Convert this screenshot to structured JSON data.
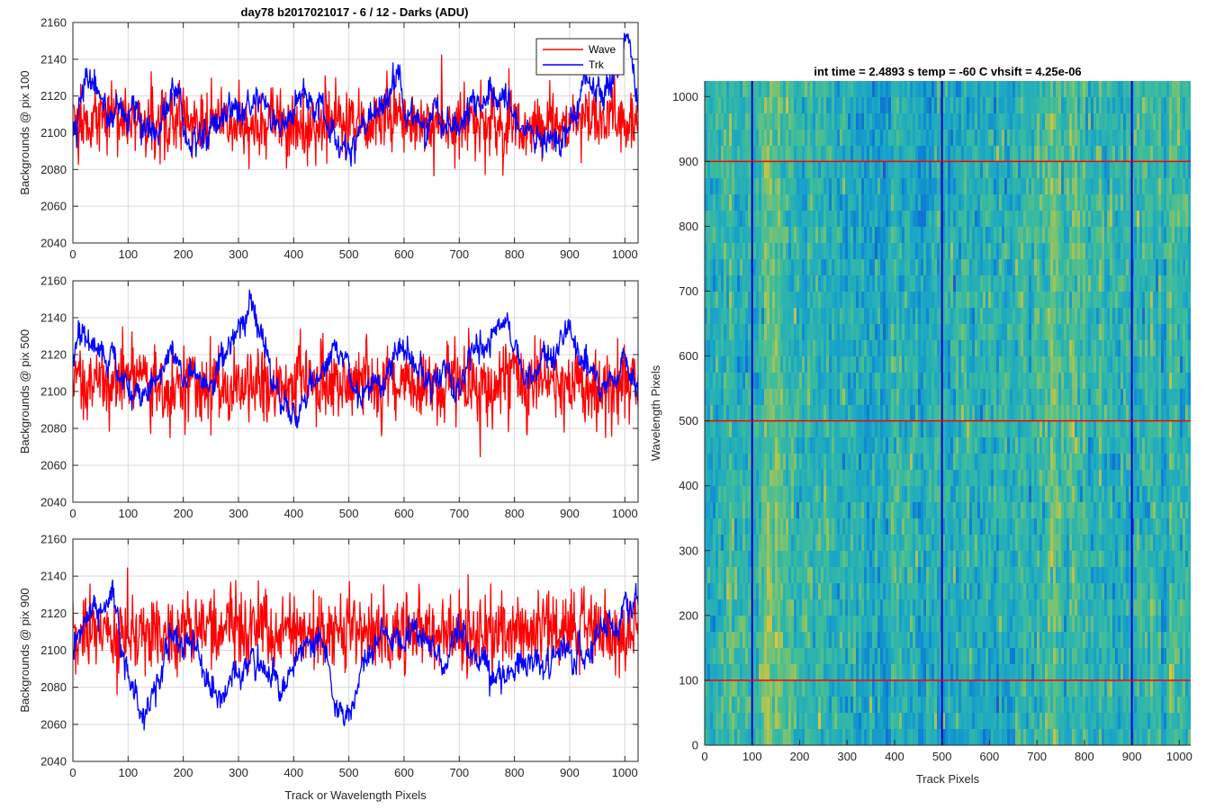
{
  "figure": {
    "title": "day78 b2017021017 - 6 / 12 - Darks (ADU)"
  },
  "chart_data": [
    {
      "type": "line",
      "ylabel": "Backgrounds @ pix 100",
      "xlabel": "",
      "xlim": [
        0,
        1024
      ],
      "ylim": [
        2040,
        2160
      ],
      "xticks": [
        0,
        100,
        200,
        300,
        400,
        500,
        600,
        700,
        800,
        900,
        1000
      ],
      "yticks": [
        2040,
        2060,
        2080,
        2100,
        2120,
        2140,
        2160
      ],
      "grid": true,
      "legend": {
        "placement": "top-right",
        "entries": [
          "Wave",
          "Trk"
        ]
      },
      "series": [
        {
          "name": "Wave",
          "color": "#ff0000",
          "mean": 2106,
          "noise": 9,
          "wander": 2,
          "anchors": [
            [
              0,
              2106
            ],
            [
              1024,
              2106
            ]
          ]
        },
        {
          "name": "Trk",
          "color": "#0000ff",
          "mean": 2110,
          "noise": 3,
          "wander": 6,
          "anchors": [
            [
              0,
              2102
            ],
            [
              20,
              2120
            ],
            [
              40,
              2130
            ],
            [
              60,
              2112
            ],
            [
              90,
              2102
            ],
            [
              120,
              2108
            ],
            [
              150,
              2098
            ],
            [
              180,
              2120
            ],
            [
              200,
              2108
            ],
            [
              220,
              2095
            ],
            [
              250,
              2110
            ],
            [
              280,
              2118
            ],
            [
              310,
              2125
            ],
            [
              340,
              2112
            ],
            [
              370,
              2100
            ],
            [
              400,
              2108
            ],
            [
              430,
              2118
            ],
            [
              460,
              2110
            ],
            [
              490,
              2098
            ],
            [
              520,
              2105
            ],
            [
              550,
              2112
            ],
            [
              580,
              2120
            ],
            [
              610,
              2115
            ],
            [
              640,
              2100
            ],
            [
              670,
              2105
            ],
            [
              700,
              2108
            ],
            [
              730,
              2112
            ],
            [
              760,
              2118
            ],
            [
              790,
              2113
            ],
            [
              820,
              2108
            ],
            [
              850,
              2098
            ],
            [
              880,
              2095
            ],
            [
              910,
              2110
            ],
            [
              940,
              2118
            ],
            [
              970,
              2122
            ],
            [
              990,
              2135
            ],
            [
              1000,
              2148
            ],
            [
              1010,
              2140
            ],
            [
              1024,
              2115
            ]
          ]
        }
      ]
    },
    {
      "type": "line",
      "ylabel": "Backgrounds @ pix 500",
      "xlabel": "",
      "xlim": [
        0,
        1024
      ],
      "ylim": [
        2040,
        2160
      ],
      "xticks": [
        0,
        100,
        200,
        300,
        400,
        500,
        600,
        700,
        800,
        900,
        1000
      ],
      "yticks": [
        2040,
        2060,
        2080,
        2100,
        2120,
        2140,
        2160
      ],
      "grid": true,
      "series": [
        {
          "name": "Wave",
          "color": "#ff0000",
          "mean": 2104,
          "noise": 10,
          "wander": 2,
          "anchors": [
            [
              0,
              2104
            ],
            [
              1024,
              2104
            ]
          ]
        },
        {
          "name": "Trk",
          "color": "#0000ff",
          "mean": 2110,
          "noise": 3,
          "wander": 5,
          "anchors": [
            [
              0,
              2115
            ],
            [
              20,
              2128
            ],
            [
              40,
              2138
            ],
            [
              60,
              2120
            ],
            [
              90,
              2105
            ],
            [
              120,
              2095
            ],
            [
              150,
              2105
            ],
            [
              180,
              2115
            ],
            [
              210,
              2110
            ],
            [
              240,
              2100
            ],
            [
              270,
              2115
            ],
            [
              300,
              2130
            ],
            [
              320,
              2142
            ],
            [
              340,
              2125
            ],
            [
              370,
              2100
            ],
            [
              400,
              2082
            ],
            [
              420,
              2095
            ],
            [
              450,
              2115
            ],
            [
              470,
              2130
            ],
            [
              500,
              2120
            ],
            [
              520,
              2102
            ],
            [
              550,
              2100
            ],
            [
              580,
              2120
            ],
            [
              610,
              2115
            ],
            [
              640,
              2095
            ],
            [
              670,
              2108
            ],
            [
              700,
              2105
            ],
            [
              730,
              2115
            ],
            [
              760,
              2132
            ],
            [
              780,
              2140
            ],
            [
              800,
              2118
            ],
            [
              830,
              2108
            ],
            [
              860,
              2110
            ],
            [
              880,
              2125
            ],
            [
              900,
              2138
            ],
            [
              920,
              2125
            ],
            [
              950,
              2110
            ],
            [
              980,
              2100
            ],
            [
              1000,
              2118
            ],
            [
              1024,
              2085
            ]
          ]
        }
      ]
    },
    {
      "type": "line",
      "ylabel": "Backgrounds @ pix 900",
      "xlabel": "Track or Wavelength Pixels",
      "xlim": [
        0,
        1024
      ],
      "ylim": [
        2040,
        2160
      ],
      "xticks": [
        0,
        100,
        200,
        300,
        400,
        500,
        600,
        700,
        800,
        900,
        1000
      ],
      "yticks": [
        2040,
        2060,
        2080,
        2100,
        2120,
        2140,
        2160
      ],
      "grid": true,
      "series": [
        {
          "name": "Wave",
          "color": "#ff0000",
          "mean": 2110,
          "noise": 10,
          "wander": 2,
          "anchors": [
            [
              0,
              2110
            ],
            [
              1024,
              2110
            ]
          ]
        },
        {
          "name": "Trk",
          "color": "#0000ff",
          "mean": 2100,
          "noise": 3,
          "wander": 5,
          "anchors": [
            [
              0,
              2100
            ],
            [
              20,
              2112
            ],
            [
              50,
              2125
            ],
            [
              80,
              2115
            ],
            [
              100,
              2095
            ],
            [
              120,
              2072
            ],
            [
              140,
              2068
            ],
            [
              170,
              2098
            ],
            [
              200,
              2112
            ],
            [
              230,
              2090
            ],
            [
              260,
              2075
            ],
            [
              290,
              2082
            ],
            [
              320,
              2100
            ],
            [
              350,
              2090
            ],
            [
              380,
              2075
            ],
            [
              400,
              2090
            ],
            [
              420,
              2105
            ],
            [
              450,
              2100
            ],
            [
              480,
              2065
            ],
            [
              500,
              2072
            ],
            [
              520,
              2090
            ],
            [
              550,
              2105
            ],
            [
              580,
              2100
            ],
            [
              610,
              2112
            ],
            [
              640,
              2103
            ],
            [
              670,
              2095
            ],
            [
              700,
              2108
            ],
            [
              730,
              2102
            ],
            [
              760,
              2095
            ],
            [
              790,
              2085
            ],
            [
              820,
              2094
            ],
            [
              850,
              2090
            ],
            [
              880,
              2100
            ],
            [
              910,
              2095
            ],
            [
              940,
              2108
            ],
            [
              970,
              2115
            ],
            [
              1000,
              2125
            ],
            [
              1024,
              2115
            ]
          ]
        }
      ]
    },
    {
      "type": "heatmap",
      "title": "int time = 2.4893 s    temp = -60 C    vhsift = 4.25e-06",
      "xlabel": "Track Pixels",
      "ylabel": "Wavelength Pixels",
      "xlim": [
        0,
        1024
      ],
      "ylim": [
        0,
        1024
      ],
      "xticks": [
        0,
        100,
        200,
        300,
        400,
        500,
        600,
        700,
        800,
        900,
        1000
      ],
      "yticks": [
        0,
        100,
        200,
        300,
        400,
        500,
        600,
        700,
        800,
        900,
        1000
      ],
      "colormap": [
        "#3d3fb5",
        "#0b7bd6",
        "#1aa7c7",
        "#3ebd9a",
        "#9fc45a",
        "#e3c23a",
        "#f9e52b"
      ],
      "vertical_lines": {
        "color": "#0000cc",
        "x": [
          100,
          500,
          900
        ]
      },
      "horizontal_lines": {
        "color": "#ff0000",
        "y": [
          100,
          500,
          900
        ]
      }
    }
  ]
}
